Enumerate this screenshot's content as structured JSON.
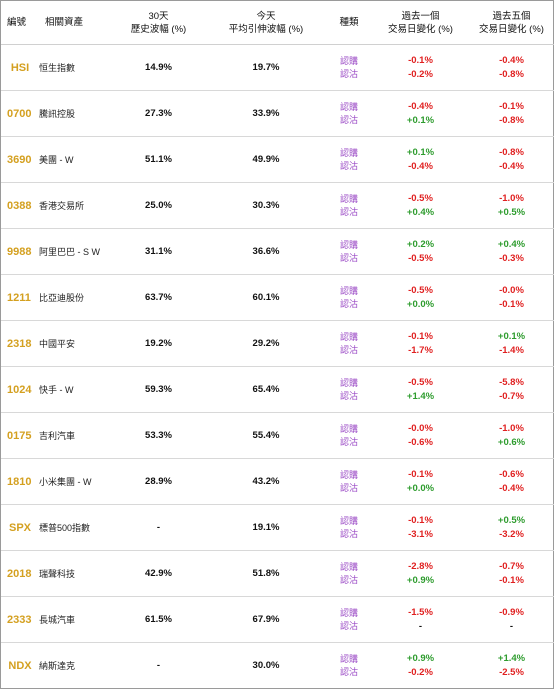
{
  "headers": {
    "code": "編號",
    "asset": "相關資產",
    "hist_l1": "30天",
    "hist_l2": "歷史波幅 (%)",
    "impl_l1": "今天",
    "impl_l2": "平均引伸波幅 (%)",
    "type": "種類",
    "d1_l1": "過去一個",
    "d1_l2": "交易日變化 (%)",
    "d5_l1": "過去五個",
    "d5_l2": "交易日變化 (%)"
  },
  "type_labels": {
    "call": "認購",
    "put": "認沽"
  },
  "colors": {
    "code": "#d4a020",
    "type": "#9a49c5",
    "negative": "#e02020",
    "positive": "#2e9c2e"
  },
  "rows": [
    {
      "code": "HSI",
      "asset": "恒生指數",
      "hist": "14.9%",
      "impl": "19.7%",
      "call_1d": "-0.1%",
      "put_1d": "-0.2%",
      "call_5d": "-0.4%",
      "put_5d": "-0.8%"
    },
    {
      "code": "0700",
      "asset": "騰訊控股",
      "hist": "27.3%",
      "impl": "33.9%",
      "call_1d": "-0.4%",
      "put_1d": "+0.1%",
      "call_5d": "-0.1%",
      "put_5d": "-0.8%"
    },
    {
      "code": "3690",
      "asset": "美團 - W",
      "hist": "51.1%",
      "impl": "49.9%",
      "call_1d": "+0.1%",
      "put_1d": "-0.4%",
      "call_5d": "-0.8%",
      "put_5d": "-0.4%"
    },
    {
      "code": "0388",
      "asset": "香港交易所",
      "hist": "25.0%",
      "impl": "30.3%",
      "call_1d": "-0.5%",
      "put_1d": "+0.4%",
      "call_5d": "-1.0%",
      "put_5d": "+0.5%"
    },
    {
      "code": "9988",
      "asset": "阿里巴巴 - S W",
      "hist": "31.1%",
      "impl": "36.6%",
      "call_1d": "+0.2%",
      "put_1d": "-0.5%",
      "call_5d": "+0.4%",
      "put_5d": "-0.3%"
    },
    {
      "code": "1211",
      "asset": "比亞迪股份",
      "hist": "63.7%",
      "impl": "60.1%",
      "call_1d": "-0.5%",
      "put_1d": "+0.0%",
      "call_5d": "-0.0%",
      "put_5d": "-0.1%"
    },
    {
      "code": "2318",
      "asset": "中國平安",
      "hist": "19.2%",
      "impl": "29.2%",
      "call_1d": "-0.1%",
      "put_1d": "-1.7%",
      "call_5d": "+0.1%",
      "put_5d": "-1.4%"
    },
    {
      "code": "1024",
      "asset": "快手 - W",
      "hist": "59.3%",
      "impl": "65.4%",
      "call_1d": "-0.5%",
      "put_1d": "+1.4%",
      "call_5d": "-5.8%",
      "put_5d": "-0.7%"
    },
    {
      "code": "0175",
      "asset": "吉利汽車",
      "hist": "53.3%",
      "impl": "55.4%",
      "call_1d": "-0.0%",
      "put_1d": "-0.6%",
      "call_5d": "-1.0%",
      "put_5d": "+0.6%"
    },
    {
      "code": "1810",
      "asset": "小米集團 - W",
      "hist": "28.9%",
      "impl": "43.2%",
      "call_1d": "-0.1%",
      "put_1d": "+0.0%",
      "call_5d": "-0.6%",
      "put_5d": "-0.4%"
    },
    {
      "code": "SPX",
      "asset": "標普500指數",
      "hist": "-",
      "impl": "19.1%",
      "call_1d": "-0.1%",
      "put_1d": "-3.1%",
      "call_5d": "+0.5%",
      "put_5d": "-3.2%"
    },
    {
      "code": "2018",
      "asset": "瑞聲科技",
      "hist": "42.9%",
      "impl": "51.8%",
      "call_1d": "-2.8%",
      "put_1d": "+0.9%",
      "call_5d": "-0.7%",
      "put_5d": "-0.1%"
    },
    {
      "code": "2333",
      "asset": "長城汽車",
      "hist": "61.5%",
      "impl": "67.9%",
      "call_1d": "-1.5%",
      "put_1d": "-",
      "call_5d": "-0.9%",
      "put_5d": "-"
    },
    {
      "code": "NDX",
      "asset": "納斯達克",
      "hist": "-",
      "impl": "30.0%",
      "call_1d": "+0.9%",
      "put_1d": "-0.2%",
      "call_5d": "+1.4%",
      "put_5d": "-2.5%"
    }
  ]
}
